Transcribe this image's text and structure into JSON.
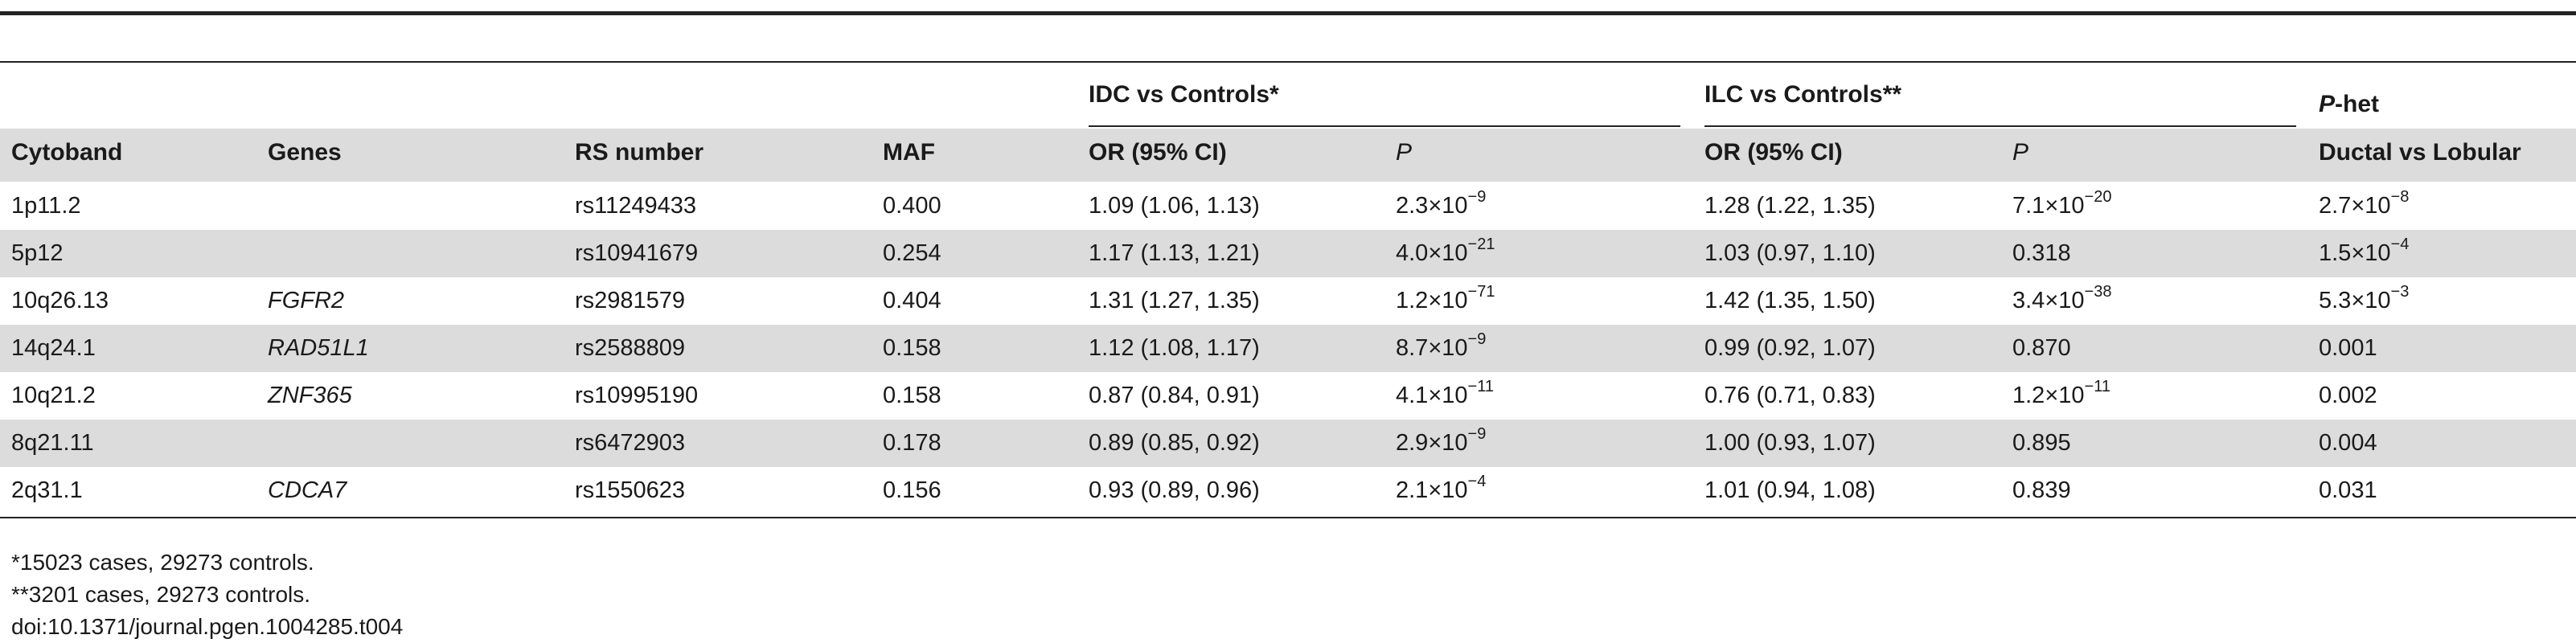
{
  "header": {
    "group_idc": "IDC vs Controls*",
    "group_ilc": "ILC vs Controls**",
    "phet_italic": "P",
    "phet_suffix": "-het",
    "columns": {
      "cytoband": "Cytoband",
      "genes": "Genes",
      "rs": "RS number",
      "maf": "MAF",
      "idc_or": "OR (95% CI)",
      "idc_p": "P",
      "ilc_or": "OR (95% CI)",
      "ilc_p": "P",
      "phet": "Ductal vs Lobular"
    }
  },
  "rows": [
    {
      "cytoband": "1p11.2",
      "genes": "",
      "rs": "rs11249433",
      "maf": "0.400",
      "idc_or": "1.09 (1.06, 1.13)",
      "idc_p_base": "2.3×10",
      "idc_p_exp": "−9",
      "ilc_or": "1.28 (1.22, 1.35)",
      "ilc_p_base": "7.1×10",
      "ilc_p_exp": "−20",
      "phet_base": "2.7×10",
      "phet_exp": "−8"
    },
    {
      "cytoband": "5p12",
      "genes": "",
      "rs": "rs10941679",
      "maf": "0.254",
      "idc_or": "1.17 (1.13, 1.21)",
      "idc_p_base": "4.0×10",
      "idc_p_exp": "−21",
      "ilc_or": "1.03 (0.97, 1.10)",
      "ilc_p_base": "0.318",
      "ilc_p_exp": "",
      "phet_base": "1.5×10",
      "phet_exp": "−4"
    },
    {
      "cytoband": "10q26.13",
      "genes": "FGFR2",
      "rs": "rs2981579",
      "maf": "0.404",
      "idc_or": "1.31 (1.27, 1.35)",
      "idc_p_base": "1.2×10",
      "idc_p_exp": "−71",
      "ilc_or": "1.42 (1.35, 1.50)",
      "ilc_p_base": "3.4×10",
      "ilc_p_exp": "−38",
      "phet_base": "5.3×10",
      "phet_exp": "−3"
    },
    {
      "cytoband": "14q24.1",
      "genes": "RAD51L1",
      "rs": "rs2588809",
      "maf": "0.158",
      "idc_or": "1.12 (1.08, 1.17)",
      "idc_p_base": "8.7×10",
      "idc_p_exp": "−9",
      "ilc_or": "0.99 (0.92, 1.07)",
      "ilc_p_base": "0.870",
      "ilc_p_exp": "",
      "phet_base": "0.001",
      "phet_exp": ""
    },
    {
      "cytoband": "10q21.2",
      "genes": "ZNF365",
      "rs": "rs10995190",
      "maf": "0.158",
      "idc_or": "0.87 (0.84, 0.91)",
      "idc_p_base": "4.1×10",
      "idc_p_exp": "−11",
      "ilc_or": "0.76 (0.71, 0.83)",
      "ilc_p_base": "1.2×10",
      "ilc_p_exp": "−11",
      "phet_base": "0.002",
      "phet_exp": ""
    },
    {
      "cytoband": "8q21.11",
      "genes": "",
      "rs": "rs6472903",
      "maf": "0.178",
      "idc_or": "0.89 (0.85, 0.92)",
      "idc_p_base": "2.9×10",
      "idc_p_exp": "−9",
      "ilc_or": "1.00 (0.93, 1.07)",
      "ilc_p_base": "0.895",
      "ilc_p_exp": "",
      "phet_base": "0.004",
      "phet_exp": ""
    },
    {
      "cytoband": "2q31.1",
      "genes": "CDCA7",
      "rs": "rs1550623",
      "maf": "0.156",
      "idc_or": "0.93 (0.89, 0.96)",
      "idc_p_base": "2.1×10",
      "idc_p_exp": "−4",
      "ilc_or": "1.01 (0.94, 1.08)",
      "ilc_p_base": "0.839",
      "ilc_p_exp": "",
      "phet_base": "0.031",
      "phet_exp": ""
    }
  ],
  "footnotes": [
    "*15023 cases, 29273 controls.",
    "**3201 cases, 29273 controls.",
    "doi:10.1371/journal.pgen.1004285.t004"
  ]
}
